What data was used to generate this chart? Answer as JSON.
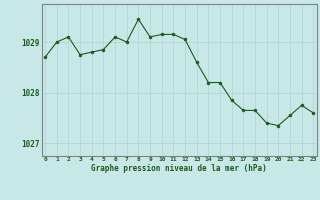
{
  "x": [
    0,
    1,
    2,
    3,
    4,
    5,
    6,
    7,
    8,
    9,
    10,
    11,
    12,
    13,
    14,
    15,
    16,
    17,
    18,
    19,
    20,
    21,
    22,
    23
  ],
  "y": [
    1028.7,
    1029.0,
    1029.1,
    1028.75,
    1028.8,
    1028.85,
    1029.1,
    1029.0,
    1029.45,
    1029.1,
    1029.15,
    1029.15,
    1029.05,
    1028.6,
    1028.2,
    1028.2,
    1027.85,
    1027.65,
    1027.65,
    1027.4,
    1027.35,
    1027.55,
    1027.75,
    1027.6
  ],
  "line_color": "#1a5c1a",
  "marker_color": "#1a5c1a",
  "bg_color": "#c8e8e8",
  "grid_color": "#aad4d4",
  "border_color": "#808080",
  "xlabel": "Graphe pression niveau de la mer (hPa)",
  "xlabel_color": "#1a5c1a",
  "tick_label_color": "#1a5c1a",
  "ylim": [
    1026.75,
    1029.75
  ],
  "yticks": [
    1027,
    1028,
    1029
  ],
  "xticks": [
    0,
    1,
    2,
    3,
    4,
    5,
    6,
    7,
    8,
    9,
    10,
    11,
    12,
    13,
    14,
    15,
    16,
    17,
    18,
    19,
    20,
    21,
    22,
    23
  ],
  "figsize": [
    3.2,
    2.0
  ],
  "dpi": 100
}
